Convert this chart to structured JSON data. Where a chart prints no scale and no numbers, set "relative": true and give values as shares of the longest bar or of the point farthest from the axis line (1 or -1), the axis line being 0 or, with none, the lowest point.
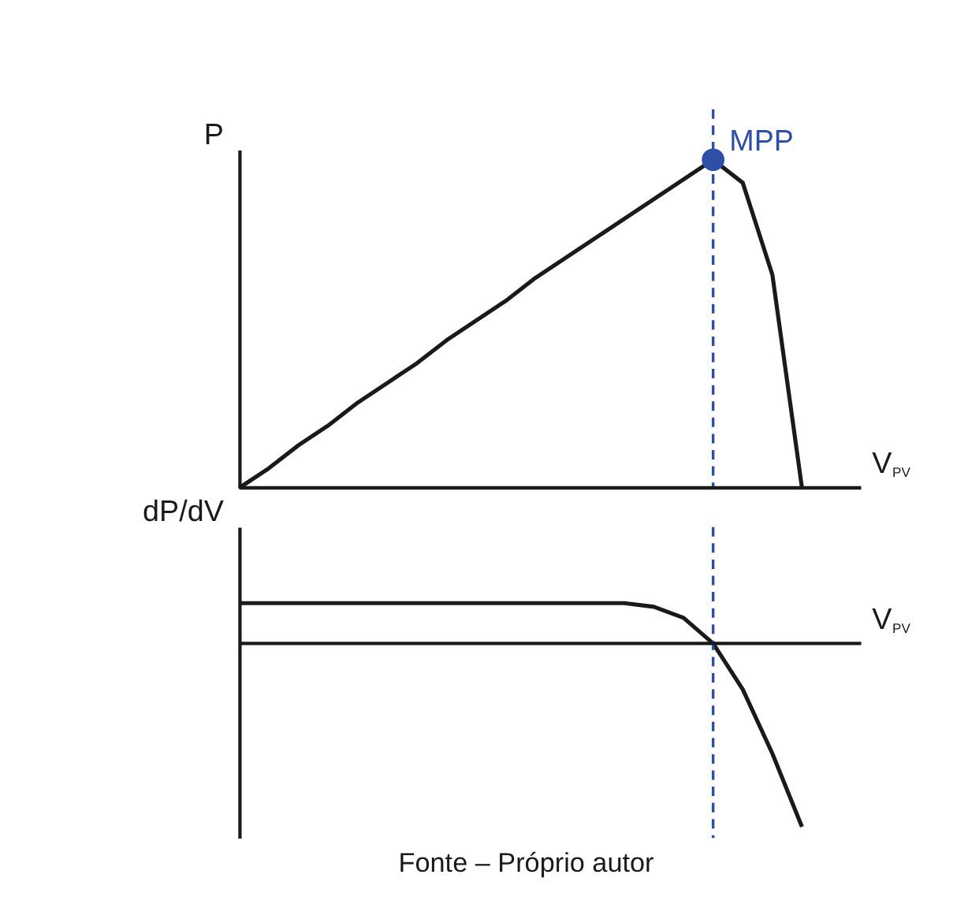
{
  "chart_data": [
    {
      "type": "line",
      "xlabel": "V$_{PV}$",
      "ylabel": "P",
      "relative": true,
      "grid": false,
      "categories": [
        null,
        null,
        null,
        null,
        null,
        null,
        null,
        null,
        null,
        null,
        null,
        null,
        null,
        null,
        null,
        null,
        null,
        null,
        null,
        null
      ],
      "series": [
        {
          "color": "#1a1a1a",
          "values": [
            0,
            0.06,
            0.13,
            0.19,
            0.26,
            0.32,
            0.38,
            0.45,
            0.51,
            0.57,
            0.64,
            0.7,
            0.76,
            0.82,
            0.88,
            0.94,
            1.0,
            0.93,
            0.65,
            0
          ]
        }
      ],
      "annotations": [
        "MPP"
      ]
    },
    {
      "type": "line",
      "xlabel": "V$_{PV}$",
      "ylabel": "dP/dV",
      "relative": true,
      "grid": false,
      "categories": [
        null,
        null,
        null,
        null,
        null,
        null,
        null,
        null,
        null,
        null,
        null,
        null,
        null,
        null,
        null,
        null,
        null,
        null,
        null,
        null
      ],
      "series": [
        {
          "color": "#1a1a1a",
          "values": [
            0.22,
            0.22,
            0.22,
            0.22,
            0.22,
            0.22,
            0.22,
            0.22,
            0.22,
            0.22,
            0.22,
            0.22,
            0.22,
            0.22,
            0.2,
            0.14,
            0,
            -0.25,
            -0.6,
            -1
          ]
        }
      ],
      "annotations": [
        "Fonte – Próprio autor"
      ]
    }
  ]
}
